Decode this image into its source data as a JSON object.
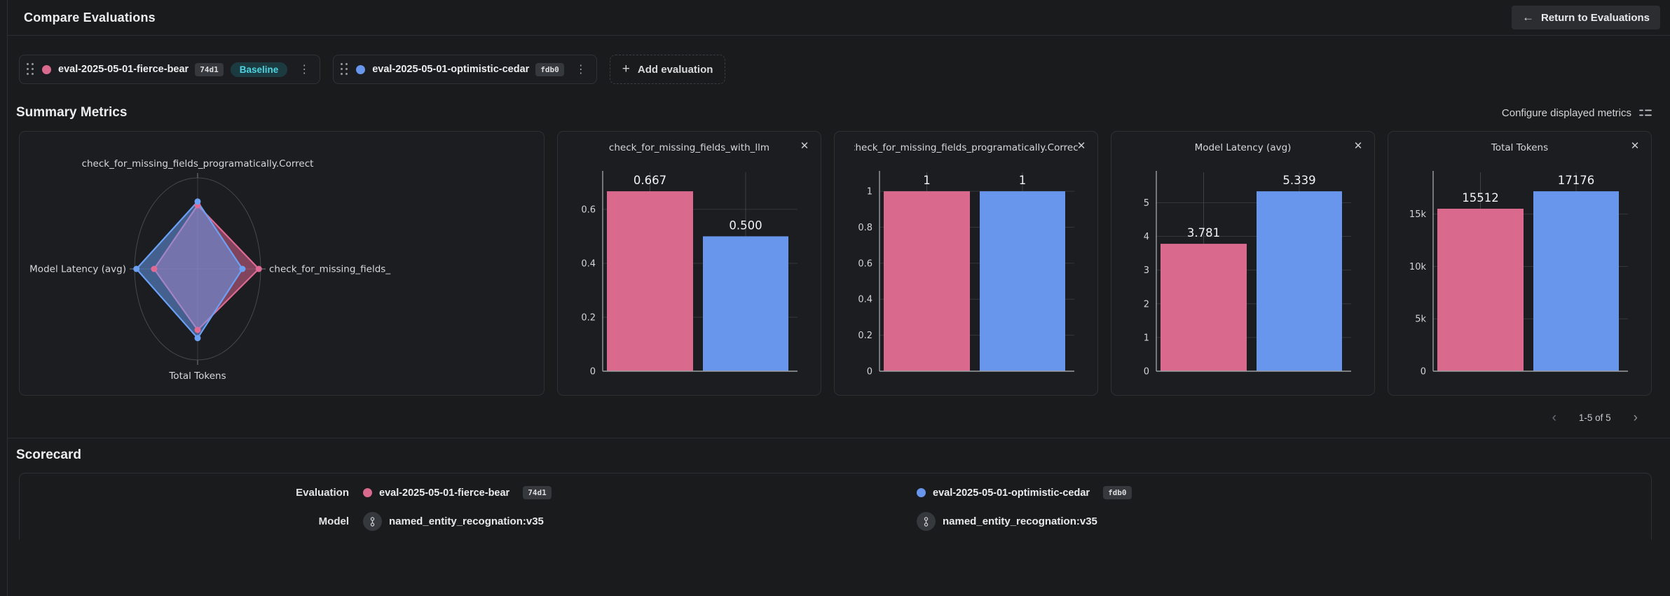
{
  "icons": {
    "back_arrow": "←",
    "plus": "+",
    "kebab": "⋮",
    "close": "✕",
    "chevron_left": "‹",
    "chevron_right": "›"
  },
  "header": {
    "title": "Compare Evaluations",
    "return_button_label": "Return to Evaluations"
  },
  "evaluations": [
    {
      "name": "eval-2025-05-01-fierce-bear",
      "id": "74d1",
      "baseline_label": "Baseline",
      "color": "#d96a8e"
    },
    {
      "name": "eval-2025-05-01-optimistic-cedar",
      "id": "fdb0",
      "color": "#6896ec"
    }
  ],
  "add_evaluation_label": "Add evaluation",
  "summary": {
    "title": "Summary Metrics",
    "configure_label": "Configure displayed metrics",
    "pagination_label": "1-5 of 5"
  },
  "chart_data": [
    {
      "type": "radar",
      "axes": [
        "check_for_missing_fields_programatically.Correct",
        "check_for_missing_fields_",
        "Total Tokens",
        "Model Latency (avg)"
      ],
      "series": [
        {
          "name": "eval-2025-05-01-fierce-bear",
          "color": "#e06a93",
          "values": [
            1,
            0.667,
            15512,
            3.781
          ],
          "values_norm": [
            0.7,
            0.97,
            0.67,
            0.69
          ]
        },
        {
          "name": "eval-2025-05-01-optimistic-cedar",
          "color": "#6ba0f5",
          "values": [
            1,
            0.5,
            17176,
            5.339
          ],
          "values_norm": [
            0.74,
            0.71,
            0.76,
            0.97
          ]
        }
      ],
      "grid": true,
      "legend": "none"
    },
    {
      "type": "bar",
      "title": "check_for_missing_fields_with_llm",
      "categories": [
        "eval-2025-05-01-fierce-bear",
        "eval-2025-05-01-optimistic-cedar"
      ],
      "values": [
        0.667,
        0.5
      ],
      "value_labels": [
        "0.667",
        "0.500"
      ],
      "colors": [
        "#d96a8e",
        "#6896ec"
      ],
      "yticks": [
        0,
        0.2,
        0.4,
        0.6
      ],
      "ytick_labels": [
        "0",
        "0.2",
        "0.4",
        "0.6"
      ],
      "ylim": [
        0,
        0.727
      ],
      "grid": true
    },
    {
      "type": "bar",
      "title": "check_for_missing_fields_programatically.Correct",
      "categories": [
        "eval-2025-05-01-fierce-bear",
        "eval-2025-05-01-optimistic-cedar"
      ],
      "values": [
        1,
        1
      ],
      "value_labels": [
        "1",
        "1"
      ],
      "colors": [
        "#d96a8e",
        "#6896ec"
      ],
      "yticks": [
        0,
        0.2,
        0.4,
        0.6,
        0.8,
        1
      ],
      "ytick_labels": [
        "0",
        "0.2",
        "0.4",
        "0.6",
        "0.8",
        "1"
      ],
      "ylim": [
        0,
        1.09
      ],
      "grid": true
    },
    {
      "type": "bar",
      "title": "Model Latency (avg)",
      "categories": [
        "eval-2025-05-01-fierce-bear",
        "eval-2025-05-01-optimistic-cedar"
      ],
      "values": [
        3.781,
        5.339
      ],
      "value_labels": [
        "3.781",
        "5.339"
      ],
      "colors": [
        "#d96a8e",
        "#6896ec"
      ],
      "yticks": [
        0,
        1,
        2,
        3,
        4,
        5
      ],
      "ytick_labels": [
        "0",
        "1",
        "2",
        "3",
        "4",
        "5"
      ],
      "ylim": [
        0,
        5.82
      ],
      "grid": true
    },
    {
      "type": "bar",
      "title": "Total Tokens",
      "categories": [
        "eval-2025-05-01-fierce-bear",
        "eval-2025-05-01-optimistic-cedar"
      ],
      "values": [
        15512,
        17176
      ],
      "value_labels": [
        "15512",
        "17176"
      ],
      "colors": [
        "#d96a8e",
        "#6896ec"
      ],
      "yticks": [
        0,
        5000,
        10000,
        15000
      ],
      "ytick_labels": [
        "0",
        "5k",
        "10k",
        "15k"
      ],
      "ylim": [
        0,
        18722
      ],
      "grid": true
    }
  ],
  "scorecard": {
    "title": "Scorecard",
    "evaluation_row_label": "Evaluation",
    "model_row_label": "Model",
    "columns": [
      {
        "evaluation_name": "eval-2025-05-01-fierce-bear",
        "evaluation_id": "74d1",
        "color": "#d96a8e",
        "model": "named_entity_recognation:v35"
      },
      {
        "evaluation_name": "eval-2025-05-01-optimistic-cedar",
        "evaluation_id": "fdb0",
        "color": "#6896ec",
        "model": "named_entity_recognation:v35"
      }
    ]
  }
}
